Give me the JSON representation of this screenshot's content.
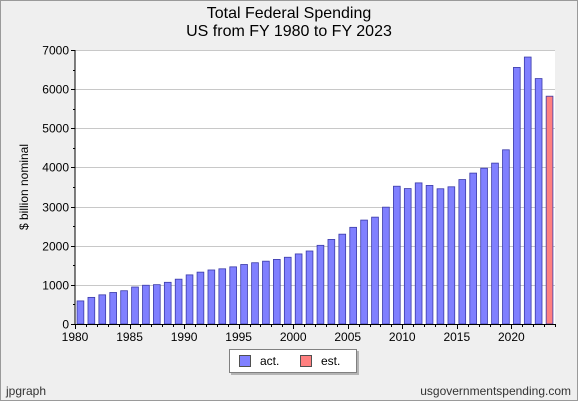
{
  "chart_data": {
    "type": "bar",
    "title": "Total Federal Spending",
    "subtitle": "US from FY 1980 to FY 2023",
    "ylabel": "$ billion nominal",
    "xlabel": "",
    "ylim": [
      0,
      7000
    ],
    "yticks": [
      "0",
      "1000",
      "2000",
      "3000",
      "4000",
      "5000",
      "6000",
      "7000"
    ],
    "xticks": [
      "1980",
      "1985",
      "1990",
      "1995",
      "2000",
      "2005",
      "2010",
      "2015",
      "2020"
    ],
    "grid": true,
    "legend_position": "bottom-center",
    "series": [
      {
        "name": "act.",
        "color": "#8080ff",
        "x": [
          1980,
          1981,
          1982,
          1983,
          1984,
          1985,
          1986,
          1987,
          1988,
          1989,
          1990,
          1991,
          1992,
          1993,
          1994,
          1995,
          1996,
          1997,
          1998,
          1999,
          2000,
          2001,
          2002,
          2003,
          2004,
          2005,
          2006,
          2007,
          2008,
          2009,
          2010,
          2011,
          2012,
          2013,
          2014,
          2015,
          2016,
          2017,
          2018,
          2019,
          2020,
          2021,
          2022
        ],
        "values": [
          590,
          680,
          745,
          805,
          850,
          945,
          990,
          1005,
          1065,
          1145,
          1255,
          1325,
          1380,
          1410,
          1460,
          1520,
          1565,
          1605,
          1650,
          1705,
          1790,
          1865,
          2010,
          2160,
          2295,
          2470,
          2655,
          2730,
          2985,
          3520,
          3460,
          3605,
          3540,
          3455,
          3505,
          3690,
          3855,
          3980,
          4110,
          4450,
          6555,
          6820,
          6270
        ]
      },
      {
        "name": "est.",
        "color": "#ff8080",
        "x": [
          2023
        ],
        "values": [
          5820
        ]
      }
    ]
  },
  "footer": {
    "left": "jpgraph",
    "right": "usgovernmentspending.com"
  }
}
